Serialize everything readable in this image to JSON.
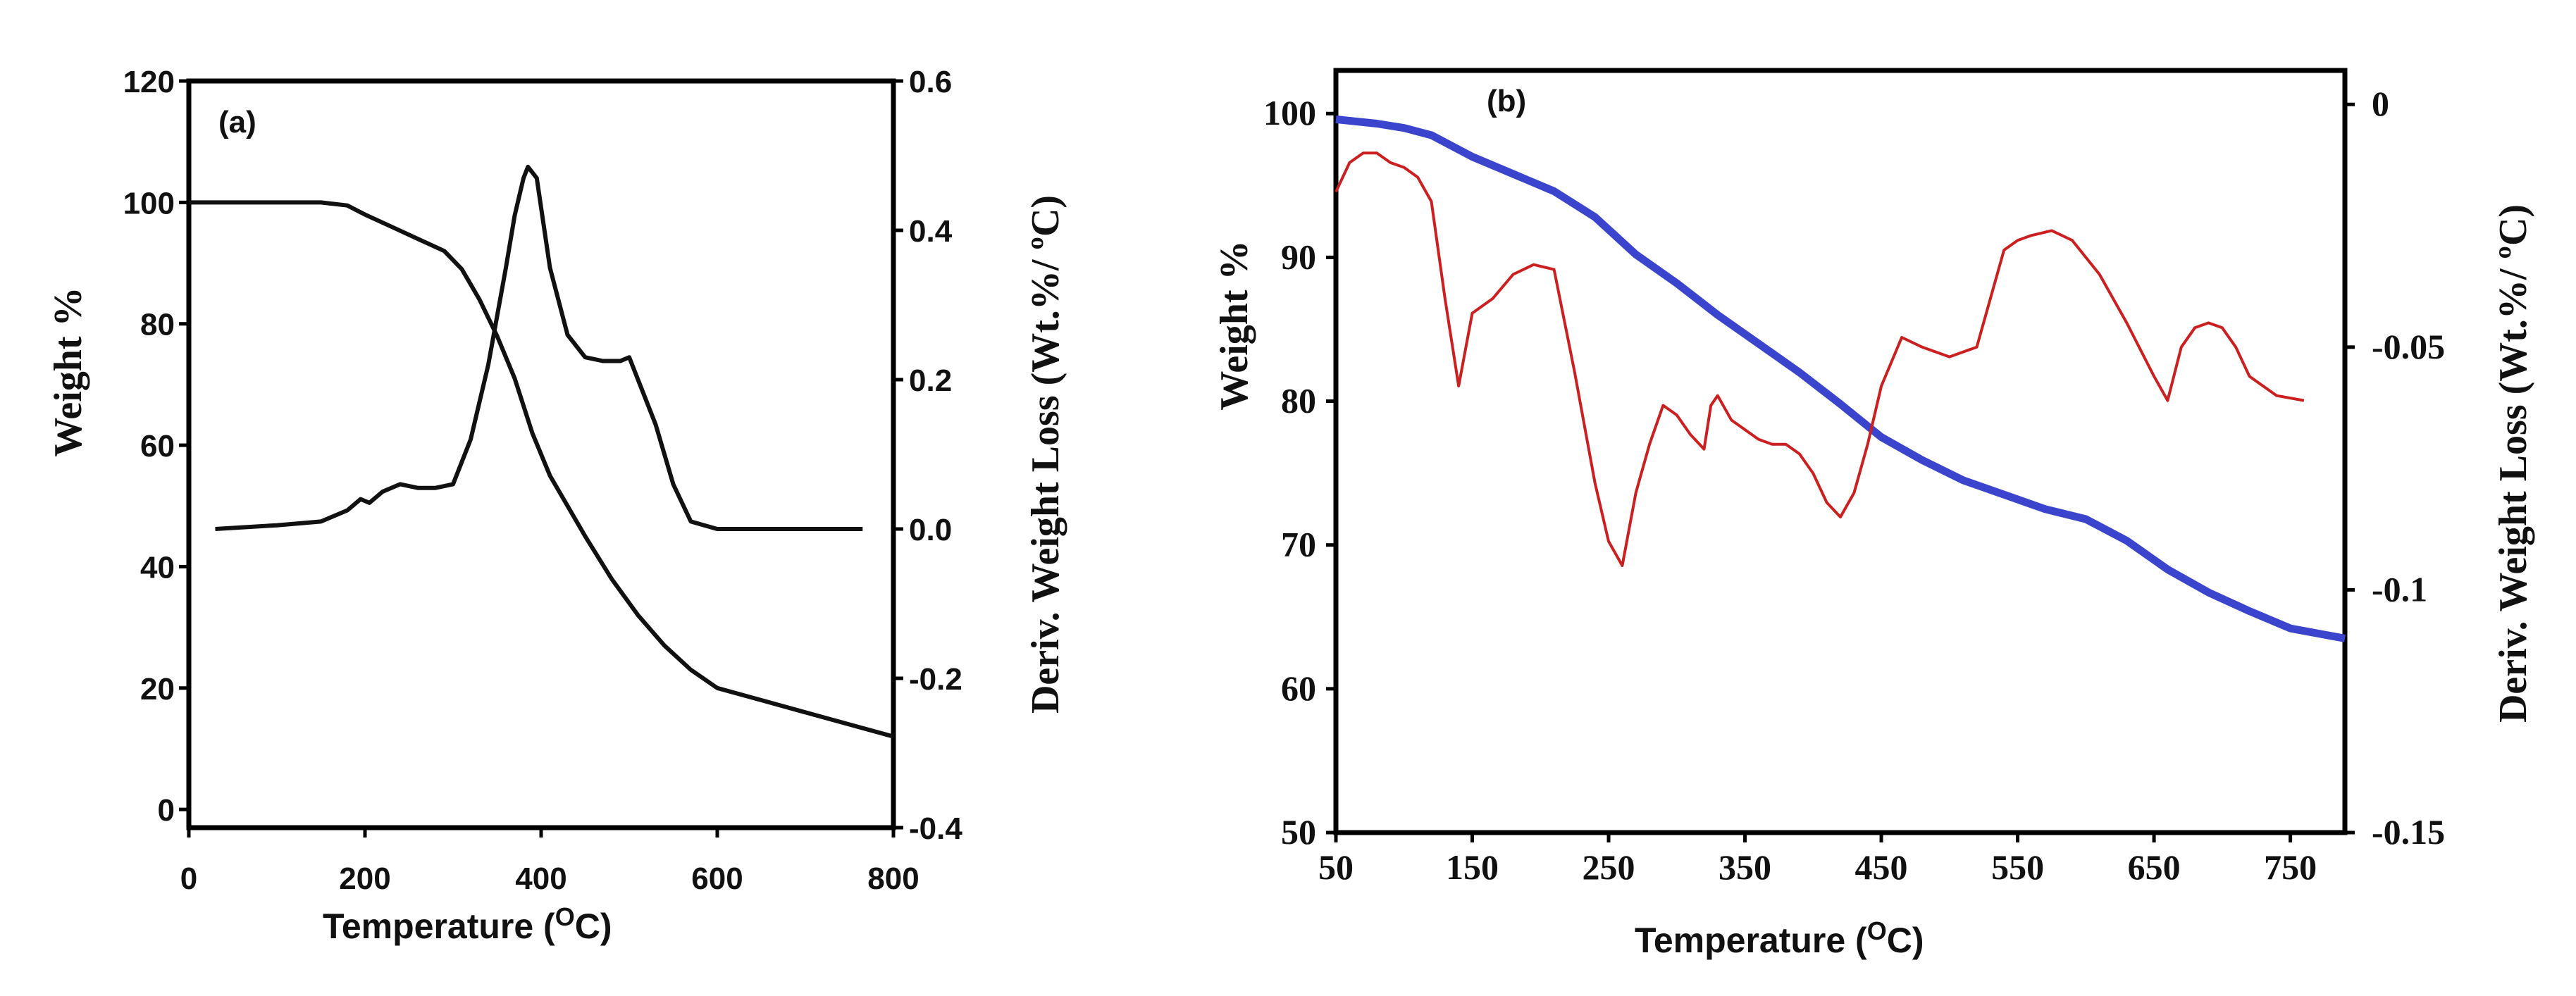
{
  "chart_data": [
    {
      "panel_label": "(a)",
      "type": "line",
      "xlabel": "Temperature (",
      "xlabel_sup": "O",
      "xlabel_end": "C)",
      "ylabel": "Weight %",
      "y2label": "Deriv. Weight Loss (Wt.%/ ºC)",
      "xlim": [
        0,
        800
      ],
      "ylim": [
        -3,
        120
      ],
      "y2lim": [
        -0.4,
        0.6
      ],
      "x_ticks": [
        "0",
        "200",
        "400",
        "600",
        "800"
      ],
      "y_ticks": [
        "0",
        "20",
        "40",
        "60",
        "80",
        "100",
        "120"
      ],
      "y2_ticks": [
        "-0.4",
        "-0.2",
        "0.0",
        "0.2",
        "0.4",
        "0.6"
      ],
      "grid": false,
      "series": [
        {
          "name": "Weight",
          "axis": "left",
          "color": "#111111",
          "x": [
            0,
            50,
            100,
            150,
            180,
            200,
            230,
            260,
            290,
            310,
            330,
            350,
            370,
            390,
            410,
            430,
            450,
            480,
            510,
            540,
            570,
            600,
            650,
            700,
            750,
            800
          ],
          "y": [
            100,
            100,
            100,
            100,
            99.5,
            98,
            96,
            94,
            92,
            89,
            84,
            78,
            71,
            62,
            55,
            50,
            45,
            38,
            32,
            27,
            23,
            20,
            18,
            16,
            14,
            12
          ]
        },
        {
          "name": "Deriv. Weight Loss",
          "axis": "right",
          "color": "#111111",
          "x": [
            30,
            100,
            150,
            180,
            195,
            205,
            220,
            240,
            260,
            280,
            300,
            320,
            340,
            360,
            370,
            380,
            385,
            395,
            410,
            430,
            450,
            470,
            490,
            500,
            510,
            530,
            550,
            570,
            600,
            650,
            700,
            765
          ],
          "y": [
            0.0,
            0.005,
            0.01,
            0.025,
            0.04,
            0.035,
            0.05,
            0.06,
            0.055,
            0.055,
            0.06,
            0.12,
            0.22,
            0.35,
            0.42,
            0.47,
            0.485,
            0.47,
            0.35,
            0.26,
            0.23,
            0.225,
            0.225,
            0.23,
            0.2,
            0.14,
            0.06,
            0.01,
            0.0,
            0.0,
            0.0,
            0.0
          ]
        }
      ]
    },
    {
      "panel_label": "(b)",
      "type": "line",
      "xlabel": "Temperature (",
      "xlabel_sup": "O",
      "xlabel_end": "C)",
      "ylabel": "Weight %",
      "y2label": "Deriv. Weight Loss (Wt.%/ ºC)",
      "xlim": [
        50,
        790
      ],
      "ylim": [
        50,
        103
      ],
      "y2lim": [
        -0.15,
        0.007
      ],
      "x_ticks": [
        "50",
        "150",
        "250",
        "350",
        "450",
        "550",
        "650",
        "750"
      ],
      "y_ticks": [
        "50",
        "60",
        "70",
        "80",
        "90",
        "100"
      ],
      "y2_ticks": [
        "-0.15",
        "-0.1",
        "-0.05",
        "0"
      ],
      "grid": false,
      "series": [
        {
          "name": "Weight",
          "axis": "left",
          "color": "#3a44cc",
          "x": [
            50,
            80,
            100,
            120,
            150,
            180,
            210,
            240,
            270,
            300,
            330,
            360,
            390,
            420,
            450,
            480,
            510,
            540,
            570,
            600,
            630,
            660,
            690,
            720,
            750,
            790
          ],
          "y": [
            99.6,
            99.3,
            99,
            98.5,
            97,
            95.8,
            94.6,
            92.8,
            90.2,
            88.2,
            86,
            84,
            82,
            79.8,
            77.5,
            75.9,
            74.5,
            73.5,
            72.5,
            71.8,
            70.3,
            68.3,
            66.7,
            65.4,
            64.2,
            63.5
          ]
        },
        {
          "name": "Deriv. Weight Loss",
          "axis": "right",
          "color": "#cc1f1f",
          "x": [
            50,
            60,
            70,
            80,
            90,
            100,
            110,
            120,
            130,
            140,
            150,
            165,
            180,
            195,
            210,
            225,
            240,
            250,
            260,
            270,
            280,
            290,
            300,
            310,
            320,
            325,
            330,
            340,
            350,
            360,
            370,
            380,
            390,
            400,
            410,
            420,
            430,
            440,
            450,
            465,
            480,
            500,
            520,
            540,
            550,
            560,
            575,
            590,
            610,
            630,
            650,
            660,
            670,
            680,
            690,
            700,
            710,
            720,
            740,
            760
          ],
          "y": [
            -0.018,
            -0.012,
            -0.01,
            -0.01,
            -0.012,
            -0.013,
            -0.015,
            -0.02,
            -0.04,
            -0.058,
            -0.043,
            -0.04,
            -0.035,
            -0.033,
            -0.034,
            -0.055,
            -0.078,
            -0.09,
            -0.095,
            -0.08,
            -0.07,
            -0.062,
            -0.064,
            -0.068,
            -0.071,
            -0.062,
            -0.06,
            -0.065,
            -0.067,
            -0.069,
            -0.07,
            -0.07,
            -0.072,
            -0.076,
            -0.082,
            -0.085,
            -0.08,
            -0.07,
            -0.058,
            -0.048,
            -0.05,
            -0.052,
            -0.05,
            -0.03,
            -0.028,
            -0.027,
            -0.026,
            -0.028,
            -0.035,
            -0.045,
            -0.056,
            -0.061,
            -0.05,
            -0.046,
            -0.045,
            -0.046,
            -0.05,
            -0.056,
            -0.06,
            -0.061
          ]
        }
      ]
    }
  ]
}
